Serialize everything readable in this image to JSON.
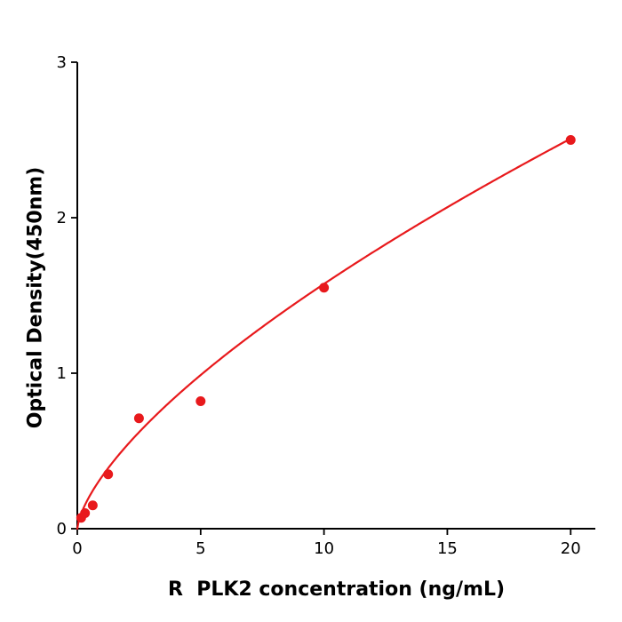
{
  "chart_data": {
    "type": "scatter",
    "title": "",
    "xlabel": "R  PLK2 concentration (ng/mL)",
    "ylabel": "Optical Density(450nm)",
    "x": [
      0.156,
      0.3125,
      0.625,
      1.25,
      2.5,
      5,
      10,
      20
    ],
    "y": [
      0.07,
      0.1,
      0.15,
      0.35,
      0.71,
      0.82,
      1.55,
      2.5
    ],
    "xlim": [
      0,
      21
    ],
    "ylim": [
      0,
      3
    ],
    "xticks": [
      0,
      5,
      10,
      15,
      20
    ],
    "yticks": [
      0,
      1,
      2,
      3
    ],
    "grid": false,
    "legend": null,
    "point_color": "#e8191c",
    "line_color": "#e8191c",
    "axis_color": "#000000",
    "background": "#ffffff",
    "fit": {
      "type": "power",
      "a": 0.335,
      "b": 0.672,
      "x_min": 0,
      "x_max": 20
    }
  }
}
